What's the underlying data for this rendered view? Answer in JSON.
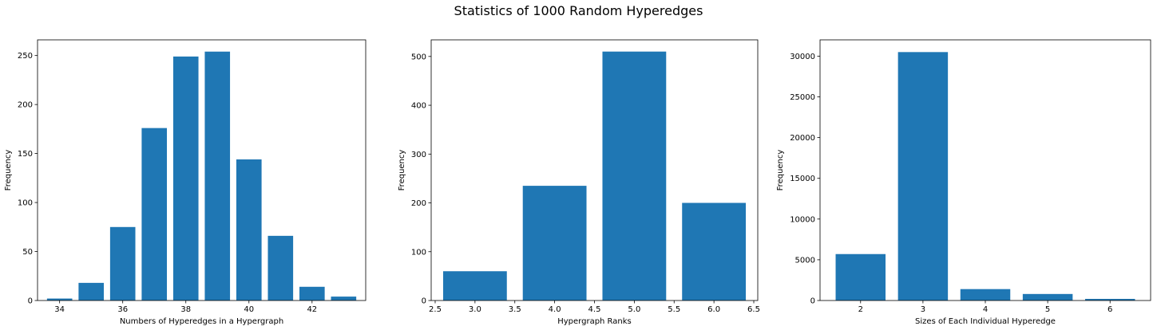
{
  "figure": {
    "title": "Statistics of 1000 Random Hyperedges"
  },
  "chart_data": [
    {
      "type": "bar",
      "xlabel": "Numbers of Hyperedges in a Hypergraph",
      "ylabel": "Frequency",
      "x": [
        34,
        35,
        36,
        37,
        38,
        39,
        40,
        41,
        42,
        43
      ],
      "values": [
        2,
        18,
        75,
        176,
        249,
        254,
        144,
        66,
        14,
        4
      ],
      "bar_width": 0.8,
      "xlim": [
        33.3,
        43.7
      ],
      "ylim": [
        0,
        266
      ],
      "xticks": [
        34,
        36,
        38,
        40,
        42
      ],
      "yticks": [
        0,
        50,
        100,
        150,
        200,
        250
      ],
      "color": "#1f77b4",
      "grid": false,
      "legend": false
    },
    {
      "type": "bar",
      "xlabel": "Hypergraph Ranks",
      "ylabel": "Frequency",
      "x": [
        3,
        4,
        5,
        6
      ],
      "values": [
        60,
        235,
        510,
        200
      ],
      "bar_width": 0.8,
      "xlim": [
        2.45,
        6.55
      ],
      "ylim": [
        0,
        534
      ],
      "xticks": [
        2.5,
        3.0,
        3.5,
        4.0,
        4.5,
        5.0,
        5.5,
        6.0,
        6.5
      ],
      "xtick_labels": [
        "2.5",
        "3.0",
        "3.5",
        "4.0",
        "4.5",
        "5.0",
        "5.5",
        "6.0",
        "6.5"
      ],
      "yticks": [
        0,
        100,
        200,
        300,
        400,
        500
      ],
      "color": "#1f77b4",
      "grid": false,
      "legend": false
    },
    {
      "type": "bar",
      "xlabel": "Sizes of Each Individual Hyperedge",
      "ylabel": "Frequency",
      "x": [
        2,
        3,
        4,
        5,
        6
      ],
      "values": [
        5700,
        30500,
        1400,
        800,
        200
      ],
      "bar_width": 0.8,
      "xlim": [
        1.35,
        6.65
      ],
      "ylim": [
        0,
        32000
      ],
      "xticks": [
        2,
        3,
        4,
        5,
        6
      ],
      "yticks": [
        0,
        5000,
        10000,
        15000,
        20000,
        25000,
        30000
      ],
      "color": "#1f77b4",
      "grid": false,
      "legend": false
    }
  ]
}
